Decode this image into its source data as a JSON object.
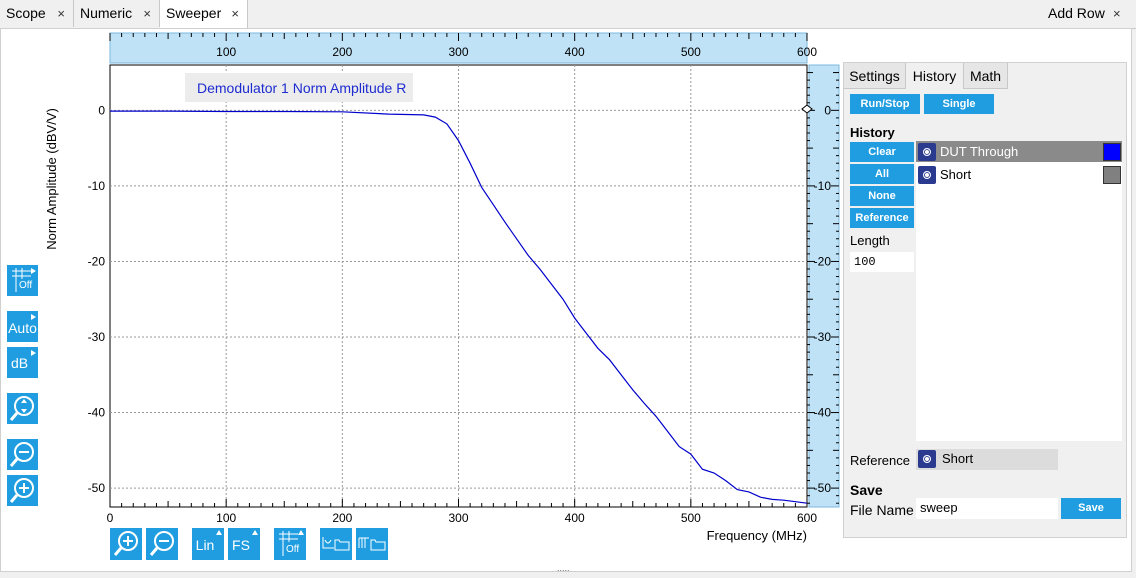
{
  "tabs": [
    {
      "label": "Scope",
      "close": "×"
    },
    {
      "label": "Numeric",
      "close": "×"
    },
    {
      "label": "Sweeper",
      "close": "×"
    }
  ],
  "add_row": {
    "label": "Add Row",
    "close": "×"
  },
  "plot": {
    "legend_label": "Demodulator 1 Norm Amplitude R",
    "ylabel": "Norm Amplitude (dBV/V)",
    "xlabel": "Frequency (MHz)",
    "series_color": "#0000cc"
  },
  "chart_data": {
    "type": "line",
    "xlabel": "Frequency (MHz)",
    "ylabel": "Norm Amplitude (dBV/V)",
    "xlim": [
      0,
      600
    ],
    "ylim": [
      -52.5,
      6
    ],
    "x_ticks": [
      "0",
      "100",
      "200",
      "300",
      "400",
      "500",
      "600"
    ],
    "top_ticks": [
      "100",
      "200",
      "300",
      "400",
      "500",
      "600"
    ],
    "y_ticks": [
      "0",
      "-10",
      "-20",
      "-30",
      "-40",
      "-50"
    ],
    "grid": true,
    "series": [
      {
        "name": "Demodulator 1 Norm Amplitude R",
        "x": [
          0,
          50,
          100,
          150,
          200,
          240,
          270,
          280,
          290,
          300,
          310,
          320,
          330,
          340,
          350,
          360,
          370,
          380,
          390,
          400,
          410,
          420,
          430,
          440,
          450,
          460,
          470,
          480,
          490,
          500,
          510,
          520,
          530,
          540,
          550,
          560,
          570,
          580,
          590,
          600
        ],
        "y": [
          -0.1,
          -0.1,
          -0.15,
          -0.15,
          -0.2,
          -0.5,
          -0.6,
          -0.9,
          -1.8,
          -4.0,
          -7.0,
          -10.2,
          -12.5,
          -14.8,
          -17.0,
          -19.2,
          -21.0,
          -23.0,
          -25.0,
          -27.5,
          -29.5,
          -31.5,
          -33.0,
          -35.0,
          -37.0,
          -38.8,
          -40.5,
          -42.5,
          -44.5,
          -45.5,
          -47.5,
          -48.0,
          -49.0,
          -50.2,
          -50.5,
          -51.2,
          -51.5,
          -51.6,
          -51.8,
          -52.0
        ]
      }
    ]
  },
  "left_toolbar": [
    {
      "name": "grid-off-button",
      "label": "Off"
    },
    {
      "name": "auto-scale-button",
      "label": "Auto"
    },
    {
      "name": "db-scale-button",
      "label": "dB"
    },
    {
      "name": "zoom-fit-button",
      "icon": "zoom-fit-icon"
    },
    {
      "name": "zoom-out-button",
      "icon": "zoom-out-icon"
    },
    {
      "name": "zoom-in-button",
      "icon": "zoom-in-icon"
    }
  ],
  "bottom_toolbar": [
    {
      "name": "zoom-in-button",
      "icon": "zoom-in-icon"
    },
    {
      "name": "zoom-out-button",
      "icon": "zoom-out-icon"
    },
    {
      "name": "lin-scale-button",
      "label": "Lin"
    },
    {
      "name": "fs-scale-button",
      "label": "FS"
    },
    {
      "name": "grid-off-button",
      "label": "Off"
    },
    {
      "name": "save-curve-button",
      "icon": "curve-folder-icon"
    },
    {
      "name": "save-table-button",
      "icon": "table-folder-icon"
    }
  ],
  "side": {
    "tabs": [
      "Settings",
      "History",
      "Math"
    ],
    "run_stop": "Run/Stop",
    "single": "Single",
    "history_title": "History",
    "clear": "Clear",
    "all": "All",
    "none": "None",
    "reference_btn": "Reference",
    "length_label": "Length",
    "length_value": "100",
    "history_items": [
      {
        "label": "DUT Through",
        "color": "#0000ff"
      },
      {
        "label": "Short",
        "color": "#808080"
      }
    ],
    "reference_label": "Reference",
    "reference_value": "Short",
    "save_title": "Save",
    "file_name_label": "File Name",
    "file_name_value": "sweep",
    "save_button": "Save"
  },
  "resize_handle": "....."
}
